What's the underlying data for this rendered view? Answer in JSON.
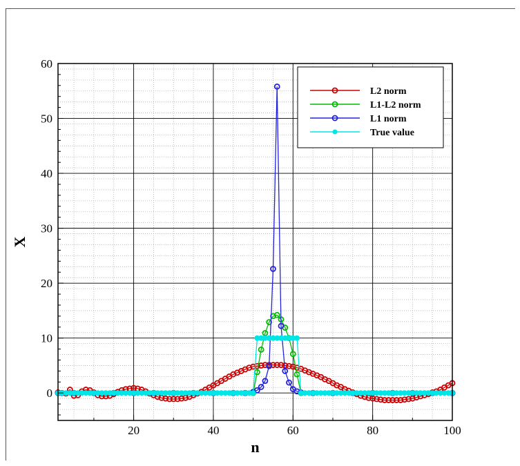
{
  "chart_data": {
    "type": "line",
    "xlabel": "n",
    "ylabel": "X",
    "xlim": [
      1,
      100
    ],
    "ylim": [
      -5,
      60
    ],
    "xticks": [
      20,
      40,
      60,
      80,
      100
    ],
    "yticks": [
      0,
      10,
      20,
      30,
      40,
      50,
      60
    ],
    "grid": true,
    "legend_position": "top-right",
    "series": [
      {
        "name": "L2 norm",
        "color": "#cc0000",
        "x": [
          1,
          2,
          3,
          4,
          5,
          6,
          7,
          8,
          9,
          10,
          11,
          12,
          13,
          14,
          15,
          16,
          17,
          18,
          19,
          20,
          21,
          22,
          23,
          24,
          25,
          26,
          27,
          28,
          29,
          30,
          31,
          32,
          33,
          34,
          35,
          36,
          37,
          38,
          39,
          40,
          41,
          42,
          43,
          44,
          45,
          46,
          47,
          48,
          49,
          50,
          51,
          52,
          53,
          54,
          55,
          56,
          57,
          58,
          59,
          60,
          61,
          62,
          63,
          64,
          65,
          66,
          67,
          68,
          69,
          70,
          71,
          72,
          73,
          74,
          75,
          76,
          77,
          78,
          79,
          80,
          81,
          82,
          83,
          84,
          85,
          86,
          87,
          88,
          89,
          90,
          91,
          92,
          93,
          94,
          95,
          96,
          97,
          98,
          99,
          100
        ],
        "y": [
          0.1,
          0.0,
          -0.1,
          0.6,
          -0.5,
          -0.4,
          0.3,
          0.6,
          0.5,
          0.1,
          -0.4,
          -0.6,
          -0.6,
          -0.5,
          -0.2,
          0.2,
          0.5,
          0.7,
          0.8,
          0.9,
          0.8,
          0.6,
          0.3,
          -0.1,
          -0.4,
          -0.7,
          -0.9,
          -1.0,
          -1.1,
          -1.1,
          -1.1,
          -1.0,
          -0.9,
          -0.7,
          -0.4,
          -0.1,
          0.2,
          0.6,
          1.0,
          1.4,
          1.8,
          2.2,
          2.6,
          3.0,
          3.4,
          3.7,
          4.0,
          4.3,
          4.6,
          4.8,
          4.9,
          5.0,
          5.1,
          5.1,
          5.1,
          5.1,
          5.1,
          5.0,
          4.9,
          4.8,
          4.6,
          4.4,
          4.1,
          3.8,
          3.5,
          3.2,
          2.9,
          2.5,
          2.2,
          1.8,
          1.4,
          1.1,
          0.7,
          0.4,
          0.1,
          -0.2,
          -0.5,
          -0.7,
          -0.9,
          -1.0,
          -1.1,
          -1.2,
          -1.3,
          -1.3,
          -1.3,
          -1.3,
          -1.3,
          -1.2,
          -1.1,
          -1.0,
          -0.8,
          -0.6,
          -0.4,
          -0.2,
          0.1,
          0.3,
          0.6,
          1.0,
          1.4,
          1.8
        ]
      },
      {
        "name": "L1-L2 norm",
        "color": "#00bb00",
        "x": [
          1,
          5,
          10,
          15,
          20,
          25,
          30,
          35,
          40,
          45,
          48,
          50,
          51,
          52,
          53,
          54,
          55,
          56,
          57,
          58,
          59,
          60,
          61,
          62,
          65,
          70,
          75,
          80,
          85,
          90,
          95,
          100
        ],
        "y": [
          0,
          0,
          0,
          0,
          0,
          0,
          0,
          0,
          0,
          0,
          0,
          0,
          3.8,
          7.9,
          10.9,
          12.9,
          14.0,
          14.2,
          13.4,
          11.9,
          10.0,
          7.1,
          3.4,
          0,
          0,
          0,
          0,
          0,
          0,
          0,
          0,
          0
        ]
      },
      {
        "name": "L1 norm",
        "color": "#2222dd",
        "x": [
          1,
          5,
          10,
          15,
          20,
          25,
          30,
          35,
          40,
          45,
          48,
          50,
          51,
          52,
          53,
          54,
          55,
          56,
          57,
          58,
          59,
          60,
          61,
          62,
          65,
          70,
          75,
          80,
          85,
          90,
          95,
          100
        ],
        "y": [
          0,
          0,
          0,
          0,
          0,
          0,
          0,
          0,
          0,
          0,
          0,
          0.2,
          0.5,
          1.1,
          2.2,
          4.9,
          22.6,
          55.8,
          12.2,
          4.0,
          1.9,
          0.7,
          0.3,
          0.1,
          0,
          0,
          0,
          0,
          0,
          0,
          0,
          0
        ]
      },
      {
        "name": "True value",
        "color": "#00e5e5",
        "x": [
          1,
          2,
          3,
          4,
          5,
          6,
          7,
          8,
          9,
          10,
          11,
          12,
          13,
          14,
          15,
          16,
          17,
          18,
          19,
          20,
          21,
          22,
          23,
          24,
          25,
          26,
          27,
          28,
          29,
          30,
          31,
          32,
          33,
          34,
          35,
          36,
          37,
          38,
          39,
          40,
          41,
          42,
          43,
          44,
          45,
          46,
          47,
          48,
          49,
          50,
          51,
          52,
          53,
          54,
          55,
          56,
          57,
          58,
          59,
          60,
          61,
          62,
          63,
          64,
          65,
          66,
          67,
          68,
          69,
          70,
          71,
          72,
          73,
          74,
          75,
          76,
          77,
          78,
          79,
          80,
          81,
          82,
          83,
          84,
          85,
          86,
          87,
          88,
          89,
          90,
          91,
          92,
          93,
          94,
          95,
          96,
          97,
          98,
          99,
          100
        ],
        "y": [
          0,
          0,
          0,
          0,
          0,
          0,
          0,
          0,
          0,
          0,
          0,
          0,
          0,
          0,
          0,
          0,
          0,
          0,
          0,
          0,
          0,
          0,
          0,
          0,
          0,
          0,
          0,
          0,
          0,
          0,
          0,
          0,
          0,
          0,
          0,
          0,
          0,
          0,
          0,
          0,
          0,
          0,
          0,
          0,
          0,
          0,
          0,
          0,
          0,
          0,
          10,
          10,
          10,
          10,
          10,
          10,
          10,
          10,
          10,
          10,
          10,
          0,
          0,
          0,
          0,
          0,
          0,
          0,
          0,
          0,
          0,
          0,
          0,
          0,
          0,
          0,
          0,
          0,
          0,
          0,
          0,
          0,
          0,
          0,
          0,
          0,
          0,
          0,
          0,
          0,
          0,
          0,
          0,
          0,
          0,
          0,
          0,
          0,
          0,
          0
        ]
      }
    ]
  }
}
